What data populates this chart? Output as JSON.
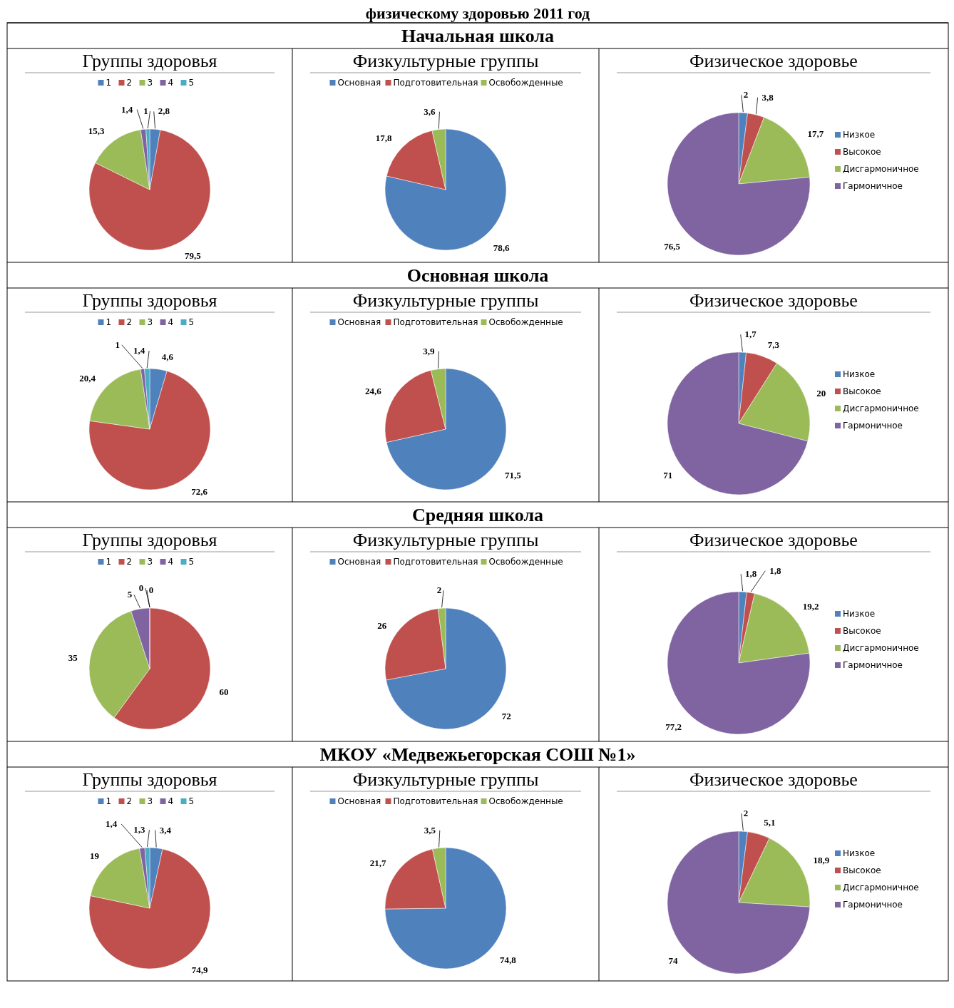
{
  "chart_data": [
    {
      "type": "pie",
      "title": "Группы здоровья",
      "annotations": [
        "физическому здоровью 2011 год",
        "Начальная школа"
      ],
      "categories": [
        "1",
        "2",
        "3",
        "4",
        "5"
      ],
      "values": [
        2.8,
        79.5,
        15.3,
        1.4,
        1
      ],
      "value_labels": [
        "2,8",
        "79,5",
        "15,3",
        "1,4",
        "1"
      ],
      "colors": [
        "#4f81bd",
        "#c0504d",
        "#9bbb59",
        "#8064a2",
        "#4bacc6"
      ],
      "legend": "top"
    },
    {
      "type": "pie",
      "title": "Физкультурные группы",
      "categories": [
        "Основная",
        "Подготовительная",
        "Освобожденные"
      ],
      "values": [
        78.6,
        17.8,
        3.6
      ],
      "value_labels": [
        "78,6",
        "17,8",
        "3,6"
      ],
      "colors": [
        "#4f81bd",
        "#c0504d",
        "#9bbb59"
      ],
      "legend": "top"
    },
    {
      "type": "pie",
      "title": "Физическое здоровье",
      "categories": [
        "Низкое",
        "Высокое",
        "Дисгармоничное",
        "Гармоничное"
      ],
      "values": [
        2,
        3.8,
        17.7,
        76.5
      ],
      "value_labels": [
        "2",
        "3,8",
        "17,7",
        "76,5"
      ],
      "colors": [
        "#4f81bd",
        "#c0504d",
        "#9bbb59",
        "#8064a2"
      ],
      "legend": "right"
    },
    {
      "type": "pie",
      "title": "Группы здоровья",
      "annotations": [
        "Основная школа"
      ],
      "categories": [
        "1",
        "2",
        "3",
        "4",
        "5"
      ],
      "values": [
        4.6,
        72.6,
        20.4,
        1,
        1.4
      ],
      "value_labels": [
        "4,6",
        "72,6",
        "20,4",
        "1",
        "1,4"
      ],
      "colors": [
        "#4f81bd",
        "#c0504d",
        "#9bbb59",
        "#8064a2",
        "#4bacc6"
      ],
      "legend": "top"
    },
    {
      "type": "pie",
      "title": "Физкультурные группы",
      "categories": [
        "Основная",
        "Подготовительная",
        "Освобожденные"
      ],
      "values": [
        71.5,
        24.6,
        3.9
      ],
      "value_labels": [
        "71,5",
        "24,6",
        "3,9"
      ],
      "colors": [
        "#4f81bd",
        "#c0504d",
        "#9bbb59"
      ],
      "legend": "top"
    },
    {
      "type": "pie",
      "title": "Физическое здоровье",
      "categories": [
        "Низкое",
        "Высокое",
        "Дисгармоничное",
        "Гармоничное"
      ],
      "values": [
        1.7,
        7.3,
        20,
        71
      ],
      "value_labels": [
        "1,7",
        "7,3",
        "20",
        "71"
      ],
      "colors": [
        "#4f81bd",
        "#c0504d",
        "#9bbb59",
        "#8064a2"
      ],
      "legend": "right"
    },
    {
      "type": "pie",
      "title": "Группы здоровья",
      "annotations": [
        "Средняя школа"
      ],
      "categories": [
        "1",
        "2",
        "3",
        "4",
        "5"
      ],
      "values": [
        0,
        60,
        35,
        5,
        0
      ],
      "value_labels": [
        "0",
        "60",
        "35",
        "5",
        "0"
      ],
      "colors": [
        "#4f81bd",
        "#c0504d",
        "#9bbb59",
        "#8064a2",
        "#4bacc6"
      ],
      "legend": "top"
    },
    {
      "type": "pie",
      "title": "Физкультурные группы",
      "categories": [
        "Основная",
        "Подготовительная",
        "Освобожденные"
      ],
      "values": [
        72,
        26,
        2
      ],
      "value_labels": [
        "72",
        "26",
        "2"
      ],
      "colors": [
        "#4f81bd",
        "#c0504d",
        "#9bbb59"
      ],
      "legend": "top"
    },
    {
      "type": "pie",
      "title": "Физическое здоровье",
      "categories": [
        "Низкое",
        "Высокое",
        "Дисгармоничное",
        "Гармоничное"
      ],
      "values": [
        1.8,
        1.8,
        19.2,
        77.2
      ],
      "value_labels": [
        "1,8",
        "1,8",
        "19,2",
        "77,2"
      ],
      "colors": [
        "#4f81bd",
        "#c0504d",
        "#9bbb59",
        "#8064a2"
      ],
      "legend": "right"
    },
    {
      "type": "pie",
      "title": "Группы здоровья",
      "annotations": [
        "МКОУ «Медвежьегорская СОШ №1»"
      ],
      "categories": [
        "1",
        "2",
        "3",
        "4",
        "5"
      ],
      "values": [
        3.4,
        74.9,
        19,
        1.4,
        1.3
      ],
      "value_labels": [
        "3,4",
        "74,9",
        "19",
        "1,4",
        "1,3"
      ],
      "colors": [
        "#4f81bd",
        "#c0504d",
        "#9bbb59",
        "#8064a2",
        "#4bacc6"
      ],
      "legend": "top"
    },
    {
      "type": "pie",
      "title": "Физкультурные группы",
      "categories": [
        "Основная",
        "Подготовительная",
        "Освобожденные"
      ],
      "values": [
        74.8,
        21.7,
        3.5
      ],
      "value_labels": [
        "74,8",
        "21,7",
        "3,5"
      ],
      "colors": [
        "#4f81bd",
        "#c0504d",
        "#9bbb59"
      ],
      "legend": "top"
    },
    {
      "type": "pie",
      "title": "Физическое здоровье",
      "categories": [
        "Низкое",
        "Высокое",
        "Дисгармоничное",
        "Гармоничное"
      ],
      "values": [
        2,
        5.1,
        18.9,
        74
      ],
      "value_labels": [
        "2",
        "5,1",
        "18,9",
        "74"
      ],
      "colors": [
        "#4f81bd",
        "#c0504d",
        "#9bbb59",
        "#8064a2"
      ],
      "legend": "right"
    }
  ]
}
